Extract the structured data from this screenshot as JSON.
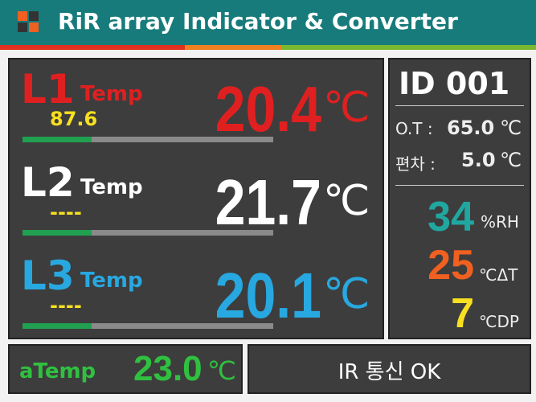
{
  "header": {
    "title": "RiR array Indicator & Converter"
  },
  "channels": [
    {
      "label": "L1",
      "suffix": "Temp",
      "value": "20.4",
      "unit": "℃",
      "sub": "87.6"
    },
    {
      "label": "L2",
      "suffix": "Temp",
      "value": "21.7",
      "unit": "℃",
      "sub": "----"
    },
    {
      "label": "L3",
      "suffix": "Temp",
      "value": "20.1",
      "unit": "℃",
      "sub": "----"
    }
  ],
  "side": {
    "id": "ID 001",
    "ot": {
      "label": "O.T :",
      "value": "65.0",
      "unit": "℃"
    },
    "dev": {
      "label": "편차 :",
      "value": "5.0",
      "unit": "℃"
    },
    "rh": {
      "value": "34",
      "unit": "%RH"
    },
    "dt": {
      "value": "25",
      "unit": "℃ΔT"
    },
    "dp": {
      "value": "7",
      "unit": "℃DP"
    }
  },
  "footer": {
    "label": "aTemp",
    "value": "23.0",
    "unit": "℃",
    "status": "IR 통신 OK"
  }
}
